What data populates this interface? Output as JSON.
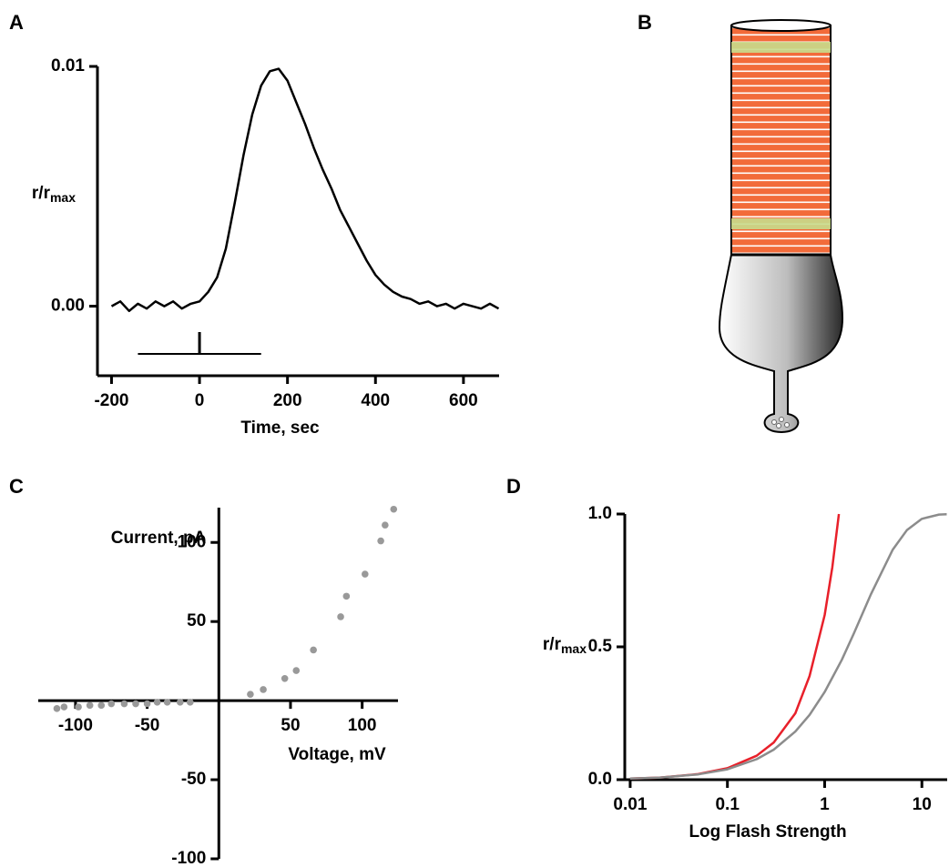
{
  "diagram_b": {
    "label": "B"
  },
  "chart_data": [
    {
      "label": "A",
      "type": "line",
      "color": "#000000",
      "x": [
        -200,
        -180,
        -160,
        -140,
        -120,
        -100,
        -80,
        -60,
        -40,
        -20,
        0,
        20,
        40,
        60,
        80,
        100,
        120,
        140,
        160,
        180,
        200,
        220,
        240,
        260,
        280,
        300,
        320,
        340,
        360,
        380,
        400,
        420,
        440,
        460,
        480,
        500,
        520,
        540,
        560,
        580,
        600,
        620,
        640,
        660,
        680
      ],
      "values": [
        0.0,
        0.0002,
        -0.0002,
        0.0001,
        -0.0001,
        0.0002,
        0.0,
        0.0002,
        -0.0001,
        0.0001,
        0.0002,
        0.0006,
        0.0012,
        0.0024,
        0.0043,
        0.0063,
        0.008,
        0.0092,
        0.0098,
        0.0099,
        0.0094,
        0.0085,
        0.0076,
        0.0066,
        0.0057,
        0.0049,
        0.004,
        0.0033,
        0.0026,
        0.0019,
        0.0013,
        0.0009,
        0.0006,
        0.0004,
        0.0003,
        0.0001,
        0.0002,
        0.0,
        0.0001,
        -0.0001,
        0.0001,
        0.0,
        -0.0001,
        0.0001,
        -0.0001
      ],
      "xlim": [
        -232,
        681
      ],
      "ylim": [
        -0.0029,
        0.01
      ],
      "xticks": [
        -200,
        0,
        200,
        400,
        600
      ],
      "yticks": [
        {
          "value": 0,
          "label": "0.00"
        },
        0.01
      ],
      "xlabel": "Time, sec",
      "ylabel": "r/r",
      "ylabel_sub": "max",
      "stimulus": {
        "start": -140,
        "end": 140,
        "flash": 0
      }
    },
    {
      "label": "C",
      "type": "scatter",
      "color": "#999999",
      "x": [
        -113,
        -108,
        -98,
        -90,
        -82,
        -75,
        -66,
        -58,
        -50,
        -43,
        -36,
        -27,
        -20,
        22,
        31,
        46,
        54,
        66,
        85,
        89,
        102,
        113,
        116,
        122
      ],
      "values": [
        -5,
        -4,
        -4,
        -3,
        -3,
        -2,
        -2,
        -2,
        -2,
        -1,
        -1,
        -1,
        -1,
        4,
        7,
        14,
        19,
        32,
        53,
        66,
        80,
        101,
        111,
        121
      ],
      "xlim": [
        -126,
        125
      ],
      "ylim": [
        -100,
        122
      ],
      "xticks": [
        -100,
        -50,
        50,
        100
      ],
      "yticks": [
        -100,
        -50,
        50,
        100
      ],
      "xlabel": "Voltage, mV",
      "ylabel": "Current, pA"
    },
    {
      "label": "D",
      "type": "line",
      "xscale": "log",
      "series": [
        {
          "color": "#e8202a",
          "x": [
            0.01,
            0.02,
            0.05,
            0.1,
            0.2,
            0.3,
            0.5,
            0.7,
            1,
            1.2,
            1.4
          ],
          "values": [
            0.004,
            0.008,
            0.021,
            0.043,
            0.09,
            0.14,
            0.25,
            0.39,
            0.62,
            0.8,
            1.0
          ]
        },
        {
          "color": "#8c8c8c",
          "x": [
            0.01,
            0.02,
            0.05,
            0.1,
            0.2,
            0.3,
            0.5,
            0.7,
            1,
            1.5,
            2,
            3,
            5,
            7,
            10,
            15,
            18
          ],
          "values": [
            0.004,
            0.008,
            0.02,
            0.039,
            0.077,
            0.113,
            0.181,
            0.244,
            0.33,
            0.451,
            0.551,
            0.699,
            0.865,
            0.939,
            0.982,
            0.998,
            0.999
          ]
        }
      ],
      "xlim": [
        0.0088,
        18.2
      ],
      "ylim": [
        0,
        1
      ],
      "xticks": [
        0.01,
        0.1,
        1,
        10
      ],
      "yticks": [
        {
          "value": 0,
          "label": "0.0"
        },
        0.5,
        {
          "value": 1,
          "label": "1.0"
        }
      ],
      "xlabel": "Log Flash Strength",
      "ylabel": "r/r",
      "ylabel_sub": "max"
    }
  ]
}
